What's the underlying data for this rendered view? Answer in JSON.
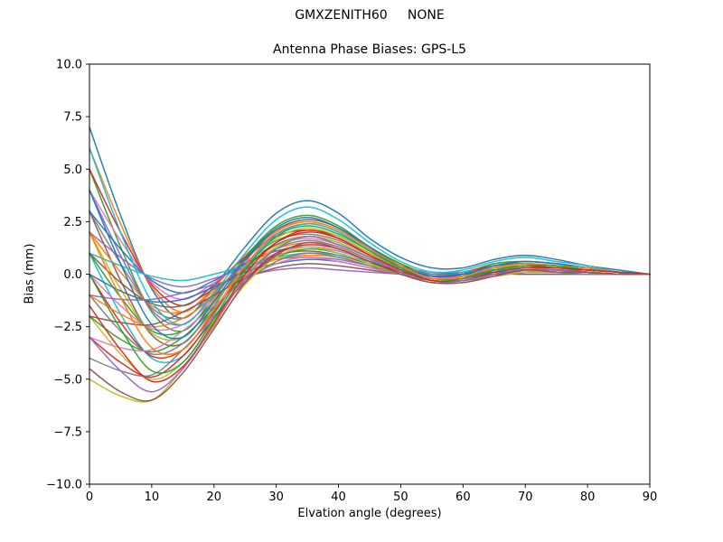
{
  "figure": {
    "suptitle": "GMXZENITH60     NONE"
  },
  "chart_data": {
    "type": "line",
    "title": "Antenna Phase Biases: GPS-L5",
    "xlabel": "Elvation angle (degrees)",
    "ylabel": "Bias (mm)",
    "xlim": [
      0,
      90
    ],
    "ylim": [
      -10,
      10
    ],
    "grid": false,
    "legend": "none",
    "xticks": {
      "values": [
        0,
        10,
        20,
        30,
        40,
        50,
        60,
        70,
        80,
        90
      ],
      "labels": [
        "0",
        "10",
        "20",
        "30",
        "40",
        "50",
        "60",
        "70",
        "80",
        "90"
      ]
    },
    "yticks": {
      "values": [
        10,
        7.5,
        5,
        2.5,
        0,
        -2.5,
        -5,
        -7.5,
        -10
      ],
      "labels": [
        "10.0",
        "7.5",
        "5.0",
        "2.5",
        "0.0",
        "−2.5",
        "−5.0",
        "−7.5",
        "−10.0"
      ]
    },
    "x": [
      0,
      5,
      10,
      15,
      20,
      25,
      30,
      35,
      40,
      45,
      50,
      55,
      60,
      65,
      70,
      75,
      80,
      85,
      90
    ],
    "series_note": "Many overlapping per-satellite antenna phase bias curves; values in mm estimated from plot",
    "series": [
      [
        7.0,
        2.8,
        -0.7,
        -2.1,
        -0.6,
        1.3,
        2.9,
        3.5,
        2.9,
        1.7,
        0.8,
        0.3,
        0.3,
        0.7,
        0.9,
        0.7,
        0.4,
        0.2,
        0.0
      ],
      [
        6.0,
        2.4,
        -0.6,
        -1.8,
        -0.6,
        0.9,
        2.1,
        2.5,
        2.1,
        1.2,
        0.5,
        0.0,
        0.1,
        0.5,
        0.6,
        0.5,
        0.3,
        0.1,
        0.0
      ],
      [
        5.0,
        1.3,
        -1.8,
        -2.7,
        -1.1,
        0.8,
        2.3,
        2.8,
        2.3,
        1.3,
        0.5,
        -0.1,
        0.0,
        0.5,
        0.6,
        0.5,
        0.3,
        0.1,
        0.0
      ],
      [
        5.0,
        2.0,
        -0.5,
        -1.5,
        -0.5,
        0.8,
        1.8,
        2.1,
        1.8,
        1.0,
        0.4,
        0.0,
        0.1,
        0.4,
        0.5,
        0.4,
        0.3,
        0.1,
        0.0
      ],
      [
        4.0,
        0.9,
        -1.7,
        -2.4,
        -1.0,
        0.7,
        1.9,
        2.4,
        2.0,
        1.1,
        0.4,
        -0.1,
        0.0,
        0.4,
        0.5,
        0.4,
        0.3,
        0.1,
        0.0
      ],
      [
        3.0,
        -0.3,
        -2.9,
        -3.3,
        -1.5,
        0.6,
        2.1,
        2.6,
        2.2,
        1.2,
        0.4,
        -0.2,
        -0.1,
        0.4,
        0.5,
        0.4,
        0.3,
        0.1,
        0.0
      ],
      [
        4.0,
        1.6,
        -0.4,
        -1.2,
        -0.4,
        0.6,
        1.4,
        1.7,
        1.4,
        0.8,
        0.3,
        0.0,
        0.1,
        0.3,
        0.4,
        0.3,
        0.2,
        0.1,
        0.0
      ],
      [
        3.0,
        0.5,
        -1.6,
        -2.1,
        -0.9,
        0.5,
        1.6,
        1.9,
        1.6,
        0.9,
        0.3,
        -0.1,
        0.0,
        0.3,
        0.4,
        0.3,
        0.2,
        0.1,
        0.0
      ],
      [
        2.0,
        -0.7,
        -2.8,
        -3.0,
        -1.4,
        0.4,
        1.7,
        2.2,
        1.8,
        1.0,
        0.3,
        -0.2,
        -0.1,
        0.3,
        0.4,
        0.4,
        0.2,
        0.1,
        0.0
      ],
      [
        1.0,
        -1.9,
        -4.0,
        -3.9,
        -1.9,
        0.3,
        1.9,
        2.4,
        2.0,
        1.1,
        0.3,
        -0.2,
        -0.2,
        0.3,
        0.5,
        0.4,
        0.2,
        0.1,
        0.0
      ],
      [
        3.0,
        1.2,
        -0.3,
        -0.9,
        -0.3,
        0.5,
        1.1,
        1.3,
        1.1,
        0.6,
        0.2,
        0.0,
        0.1,
        0.2,
        0.3,
        0.2,
        0.2,
        0.1,
        0.0
      ],
      [
        2.0,
        0.1,
        -1.5,
        -1.8,
        -0.8,
        0.4,
        1.2,
        1.5,
        1.3,
        0.7,
        0.2,
        -0.1,
        0.0,
        0.2,
        0.3,
        0.3,
        0.2,
        0.1,
        0.0
      ],
      [
        1.0,
        -1.1,
        -2.7,
        -2.7,
        -1.3,
        0.3,
        1.4,
        1.8,
        1.5,
        0.8,
        0.2,
        -0.2,
        -0.1,
        0.2,
        0.3,
        0.3,
        0.2,
        0.1,
        0.0
      ],
      [
        0.0,
        -2.3,
        -3.9,
        -3.6,
        -1.8,
        0.2,
        1.5,
        2.0,
        1.7,
        0.9,
        0.2,
        -0.2,
        -0.2,
        0.2,
        0.4,
        0.3,
        0.2,
        0.1,
        0.0
      ],
      [
        2.0,
        0.8,
        -0.2,
        -0.6,
        -0.2,
        0.3,
        0.7,
        0.8,
        0.7,
        0.4,
        0.2,
        0.0,
        0.0,
        0.2,
        0.2,
        0.2,
        0.1,
        0.0,
        0.0
      ],
      [
        1.0,
        -0.4,
        -1.4,
        -1.5,
        -0.7,
        0.2,
        0.9,
        1.1,
        0.9,
        0.5,
        0.2,
        -0.1,
        0.0,
        0.1,
        0.2,
        0.2,
        0.1,
        0.0,
        0.0
      ],
      [
        0.0,
        -1.5,
        -2.6,
        -2.4,
        -1.2,
        0.1,
        1.0,
        1.3,
        1.1,
        0.6,
        0.2,
        -0.2,
        -0.1,
        0.1,
        0.2,
        0.2,
        0.1,
        0.0,
        0.0
      ],
      [
        -1.0,
        -2.7,
        -3.8,
        -3.3,
        -1.7,
        0.0,
        1.2,
        1.6,
        1.3,
        0.7,
        0.2,
        -0.2,
        -0.2,
        0.1,
        0.3,
        0.2,
        0.1,
        0.0,
        0.0
      ],
      [
        -2.0,
        -3.8,
        -5.0,
        -4.2,
        -2.2,
        -0.1,
        1.3,
        1.8,
        1.5,
        0.8,
        0.2,
        -0.3,
        -0.3,
        0.1,
        0.3,
        0.2,
        0.1,
        0.0,
        0.0
      ],
      [
        1.0,
        0.4,
        -0.1,
        -0.3,
        0.0,
        0.4,
        0.8,
        1.0,
        0.9,
        0.6,
        0.3,
        0.1,
        0.1,
        0.2,
        0.3,
        0.2,
        0.1,
        0.0,
        0.0
      ],
      [
        0.0,
        -0.8,
        -1.3,
        -1.2,
        -0.6,
        0.1,
        0.5,
        0.7,
        0.6,
        0.3,
        0.1,
        -0.1,
        -0.1,
        0.1,
        0.1,
        0.1,
        0.1,
        0.0,
        0.0
      ],
      [
        -1.0,
        -1.9,
        -2.5,
        -2.1,
        -1.1,
        0.0,
        0.7,
        0.9,
        0.8,
        0.4,
        0.1,
        -0.2,
        -0.1,
        0.0,
        0.1,
        0.1,
        0.1,
        0.0,
        0.0
      ],
      [
        -2.0,
        -3.1,
        -3.7,
        -3.0,
        -1.6,
        -0.2,
        0.8,
        1.2,
        1.0,
        0.5,
        0.1,
        -0.2,
        -0.2,
        0.0,
        0.2,
        0.1,
        0.1,
        0.0,
        0.0
      ],
      [
        -3.0,
        -4.2,
        -4.9,
        -3.9,
        -2.1,
        -0.3,
        1.0,
        1.4,
        1.2,
        0.6,
        0.1,
        -0.3,
        -0.3,
        0.0,
        0.2,
        0.2,
        0.1,
        0.0,
        0.0
      ],
      [
        -1.0,
        -1.2,
        -1.2,
        -0.9,
        -0.5,
        -0.1,
        0.2,
        0.3,
        0.2,
        0.1,
        0.0,
        -0.1,
        -0.1,
        0.0,
        0.0,
        0.0,
        0.0,
        0.0,
        0.0
      ],
      [
        -2.0,
        -2.3,
        -2.4,
        -1.8,
        -1.0,
        -0.2,
        0.3,
        0.5,
        0.4,
        0.2,
        0.0,
        -0.2,
        -0.2,
        0.0,
        0.0,
        0.0,
        0.0,
        0.0,
        0.0
      ],
      [
        -3.0,
        -3.5,
        -3.6,
        -2.7,
        -1.5,
        -0.3,
        0.5,
        0.8,
        0.6,
        0.3,
        0.0,
        -0.2,
        -0.2,
        -0.1,
        0.1,
        0.1,
        0.0,
        0.0,
        0.0
      ],
      [
        -4.0,
        -4.6,
        -4.8,
        -3.6,
        -2.0,
        -0.4,
        0.6,
        1.0,
        0.8,
        0.4,
        0.0,
        -0.3,
        -0.3,
        -0.1,
        0.1,
        0.1,
        0.0,
        0.0,
        0.0
      ],
      [
        -5.0,
        -5.8,
        -6.0,
        -4.5,
        -2.5,
        -0.5,
        0.8,
        1.3,
        1.0,
        0.5,
        0.0,
        -0.4,
        -0.4,
        -0.1,
        0.1,
        0.1,
        0.1,
        0.0,
        0.0
      ],
      [
        6.0,
        2.0,
        -1.3,
        -2.4,
        -0.9,
        1.0,
        2.6,
        3.2,
        2.6,
        1.5,
        0.6,
        0.1,
        0.2,
        0.6,
        0.8,
        0.6,
        0.4,
        0.1,
        0.0
      ],
      [
        4.0,
        0.5,
        -2.4,
        -3.0,
        -1.3,
        0.7,
        2.2,
        2.7,
        2.2,
        1.3,
        0.4,
        -0.1,
        0.0,
        0.4,
        0.6,
        0.5,
        0.3,
        0.1,
        0.0
      ],
      [
        2.0,
        -1.1,
        -3.5,
        -3.6,
        -1.7,
        0.4,
        2.0,
        2.5,
        2.1,
        1.2,
        0.4,
        -0.2,
        -0.1,
        0.3,
        0.5,
        0.4,
        0.3,
        0.1,
        0.0
      ],
      [
        0.0,
        -2.6,
        -4.6,
        -4.2,
        -2.1,
        0.2,
        1.8,
        2.3,
        1.9,
        1.1,
        0.3,
        -0.3,
        -0.2,
        0.2,
        0.4,
        0.4,
        0.2,
        0.1,
        0.0
      ],
      [
        -1.5,
        -3.6,
        -5.1,
        -4.4,
        -2.3,
        0.0,
        1.5,
        2.1,
        1.7,
        0.9,
        0.2,
        -0.3,
        -0.3,
        0.1,
        0.3,
        0.3,
        0.2,
        0.1,
        0.0
      ],
      [
        -3.0,
        -4.6,
        -5.6,
        -4.5,
        -2.4,
        -0.2,
        1.2,
        1.8,
        1.4,
        0.8,
        0.1,
        -0.4,
        -0.3,
        0.0,
        0.2,
        0.2,
        0.1,
        0.0,
        0.0
      ],
      [
        -4.5,
        -5.6,
        -6.0,
        -4.7,
        -2.6,
        -0.4,
        0.9,
        1.5,
        1.2,
        0.6,
        0.0,
        -0.4,
        -0.4,
        -0.1,
        0.2,
        0.1,
        0.1,
        0.0,
        0.0
      ]
    ],
    "palette": [
      "#1f77b4",
      "#ff7f0e",
      "#2ca02c",
      "#d62728",
      "#9467bd",
      "#8c564b",
      "#e377c2",
      "#7f7f7f",
      "#bcbd22",
      "#17becf"
    ],
    "colors": {
      "axes": "#000000",
      "background": "#ffffff",
      "text": "#000000"
    }
  }
}
